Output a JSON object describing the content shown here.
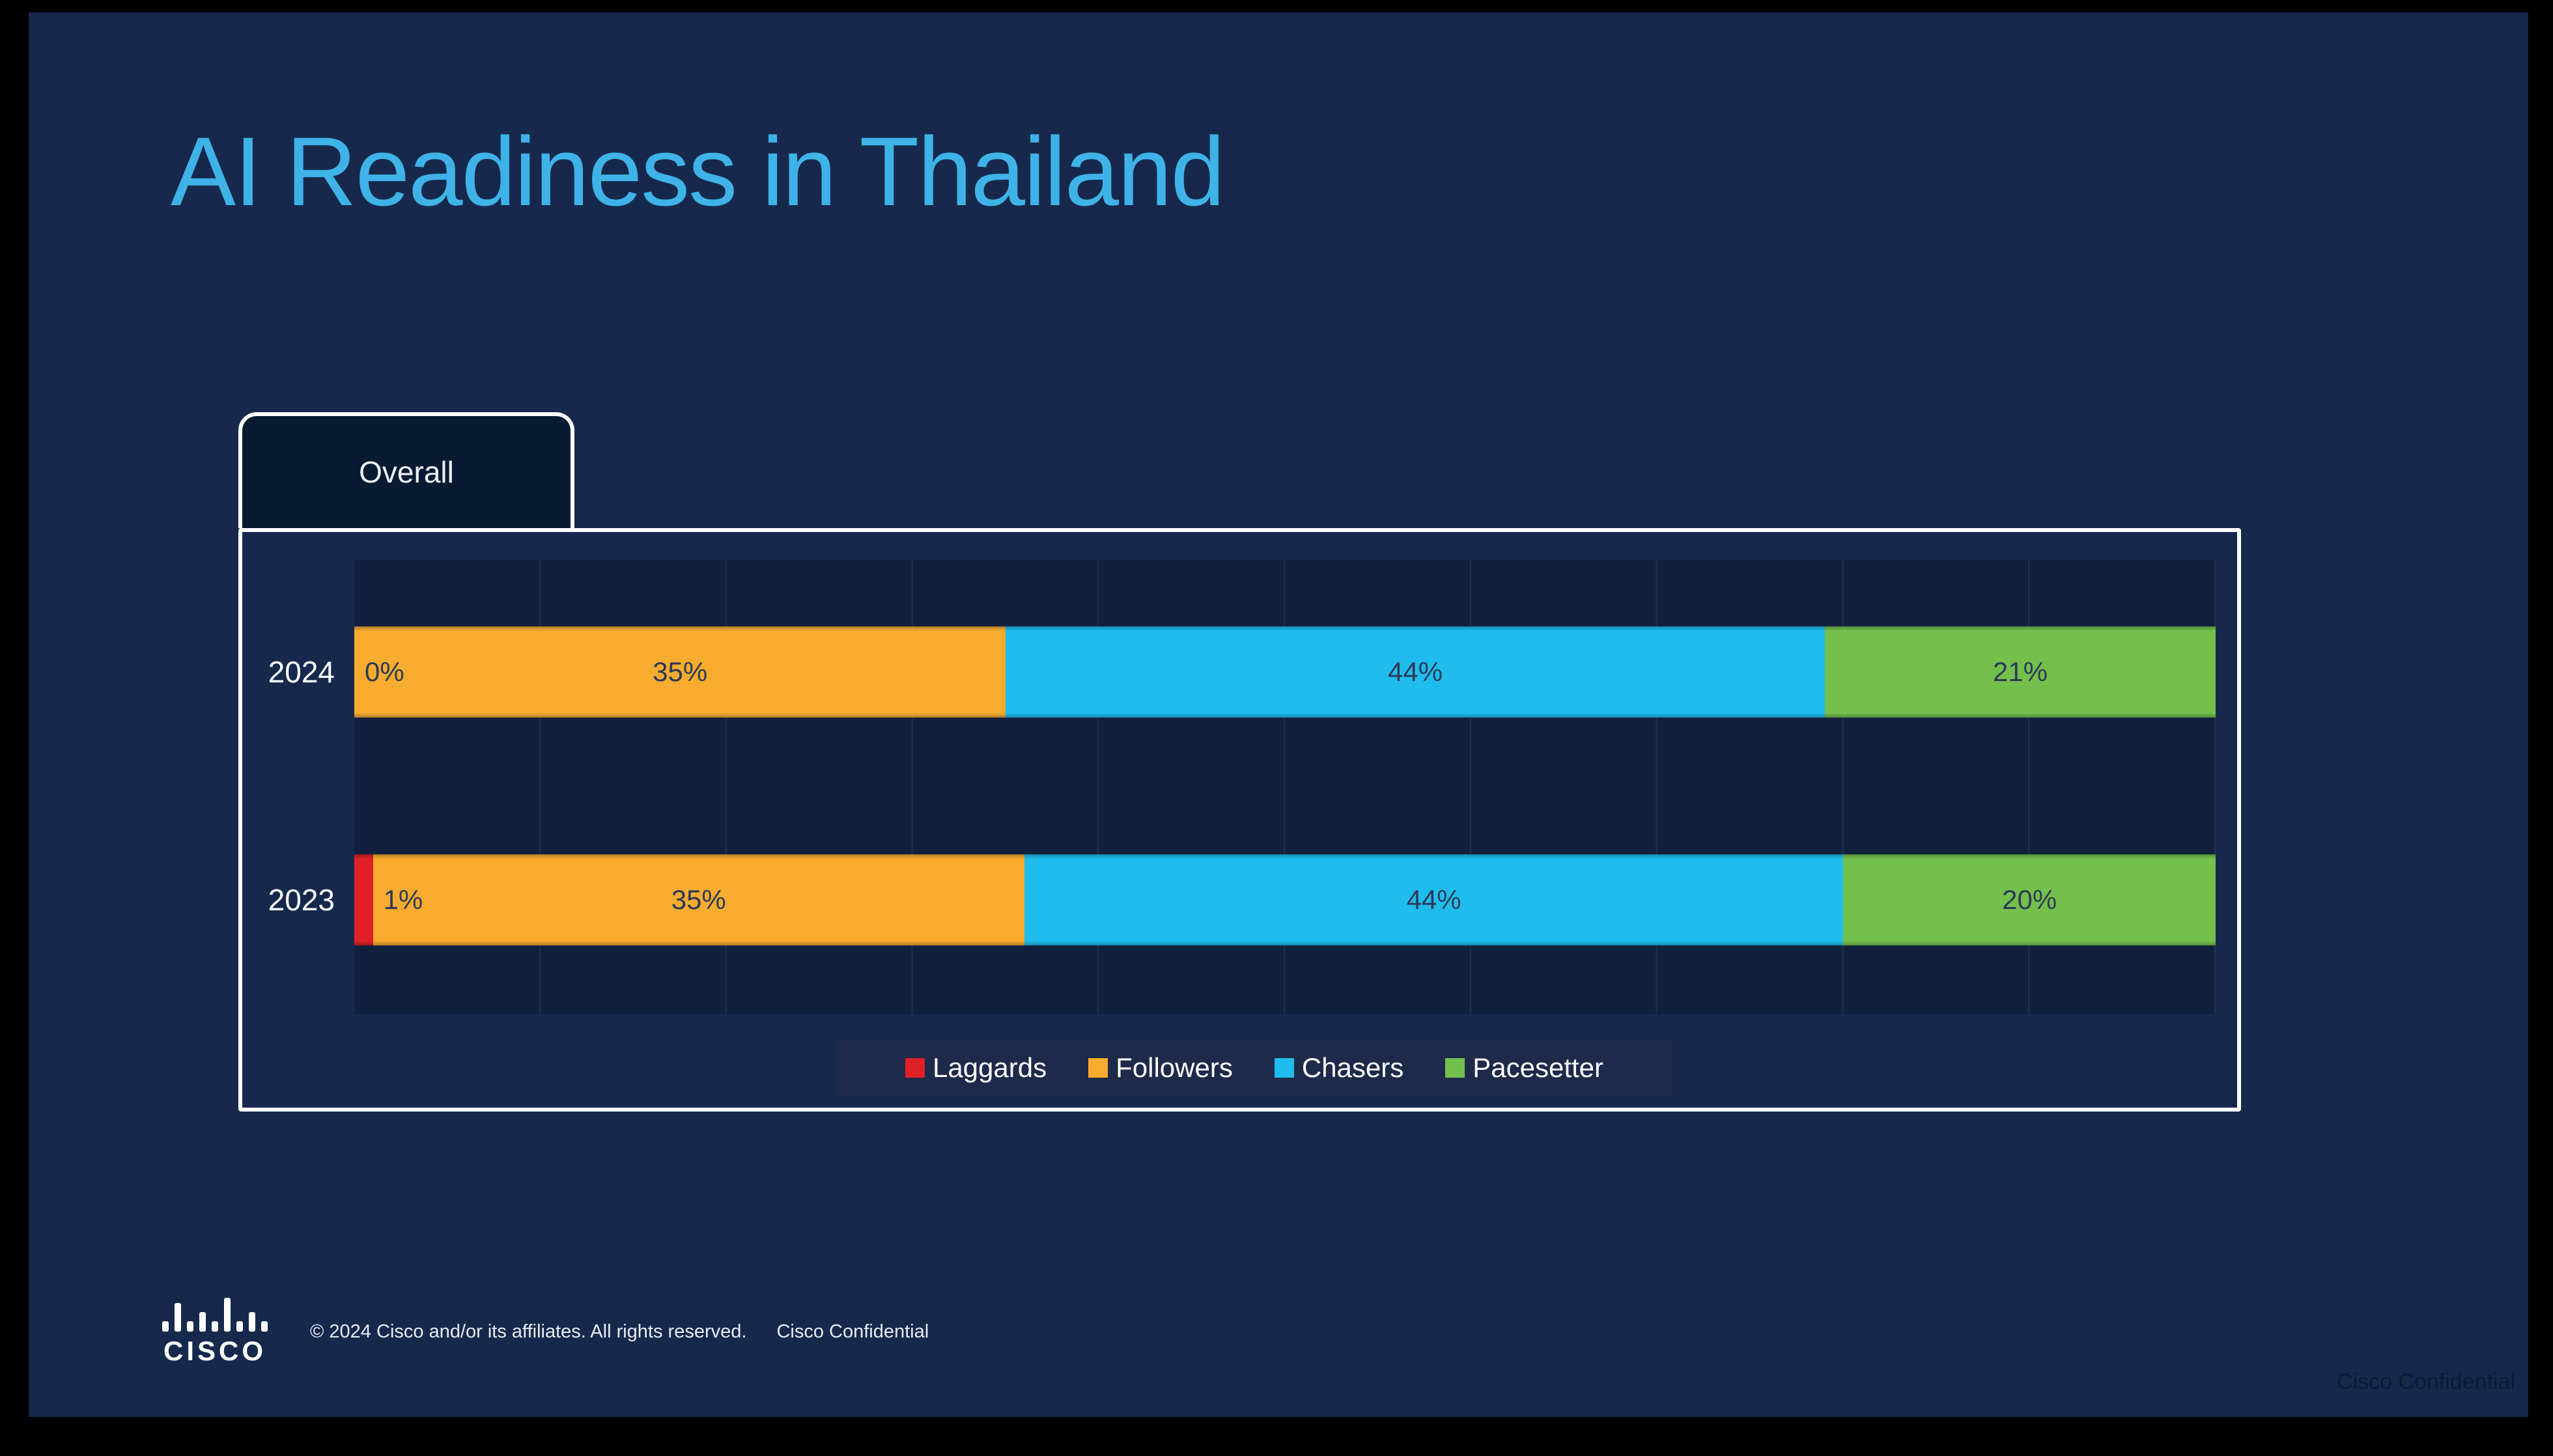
{
  "slide": {
    "title": "AI Readiness in Thailand",
    "tab_label": "Overall",
    "footer": {
      "logo_text": "CISCO",
      "copyright": "© 2024 Cisco and/or its affiliates. All rights reserved.",
      "confidential": "Cisco Confidential"
    },
    "watermark": "Cisco Confidential"
  },
  "colors": {
    "slide_background": "#16294d",
    "title_accent": "#3fb3e8",
    "panel_border": "#ffffff",
    "plot_band": "#11203d",
    "legend_background": "#1e2a49"
  },
  "chart_data": {
    "type": "bar",
    "orientation": "horizontal",
    "stacked": true,
    "title": "",
    "xlabel": "",
    "ylabel": "",
    "categories": [
      "2024",
      "2023"
    ],
    "series": [
      {
        "name": "Laggards",
        "color": "#df2127",
        "values": [
          0,
          1
        ]
      },
      {
        "name": "Followers",
        "color": "#f7ab2f",
        "values": [
          35,
          35
        ]
      },
      {
        "name": "Chasers",
        "color": "#1fbdee",
        "values": [
          44,
          44
        ]
      },
      {
        "name": "Pacesetter",
        "color": "#74c04c",
        "values": [
          21,
          20
        ]
      }
    ],
    "value_labels": [
      [
        "0%",
        "35%",
        "44%",
        "21%"
      ],
      [
        "1%",
        "35%",
        "44%",
        "20%"
      ]
    ],
    "xlim": [
      0,
      100
    ],
    "grid": true,
    "gridline_step_percent": 10,
    "legend_position": "bottom-center"
  }
}
